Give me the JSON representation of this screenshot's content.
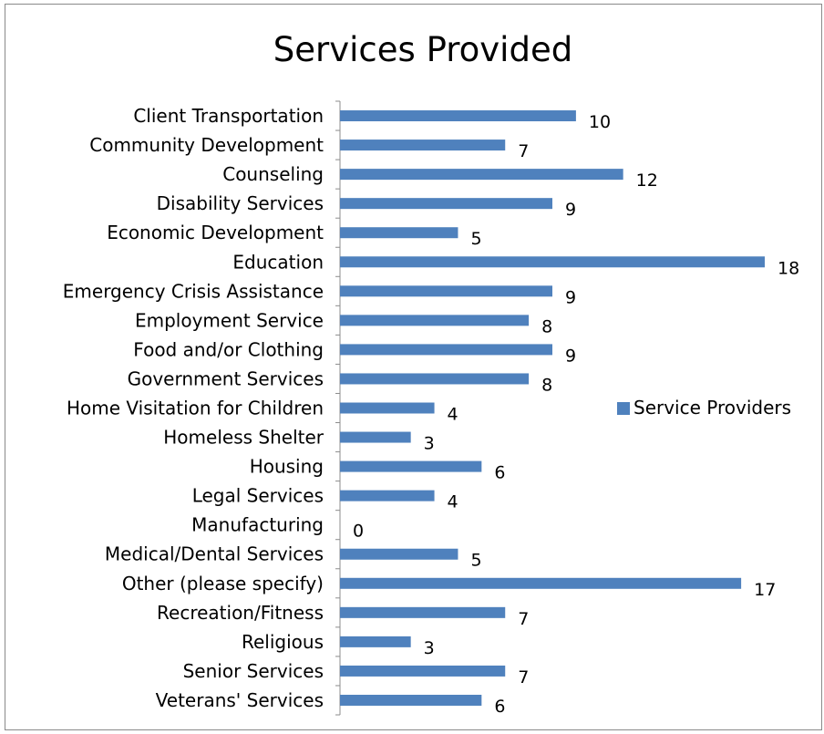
{
  "chart_data": {
    "type": "bar",
    "orientation": "horizontal",
    "title": "Services Provided",
    "xlabel": "",
    "ylabel": "",
    "categories": [
      "Client Transportation",
      "Community Development",
      "Counseling",
      "Disability Services",
      "Economic Development",
      "Education",
      "Emergency Crisis Assistance",
      "Employment Service",
      "Food and/or Clothing",
      "Government Services",
      "Home Visitation for Children",
      "Homeless Shelter",
      "Housing",
      "Legal Services",
      "Manufacturing",
      "Medical/Dental Services",
      "Other (please specify)",
      "Recreation/Fitness",
      "Religious",
      "Senior Services",
      "Veterans' Services"
    ],
    "series": [
      {
        "name": "Service Providers",
        "color": "#4f81bd",
        "values": [
          10,
          7,
          12,
          9,
          5,
          18,
          9,
          8,
          9,
          8,
          4,
          3,
          6,
          4,
          0,
          5,
          17,
          7,
          3,
          7,
          6
        ]
      }
    ],
    "xlim": [
      0,
      18
    ],
    "grid": false,
    "data_labels": true,
    "legend_position": "right"
  }
}
